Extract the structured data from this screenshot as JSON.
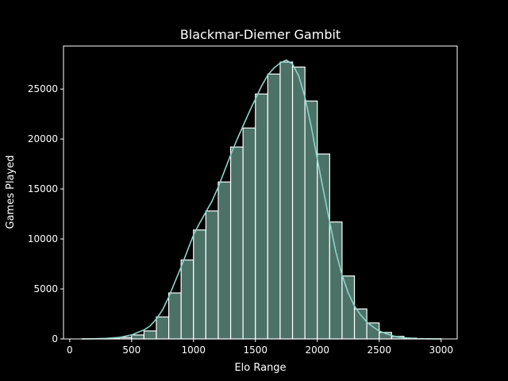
{
  "chart_data": {
    "type": "bar",
    "title": "Blackmar-Diemer Gambit",
    "xlabel": "Elo Range",
    "ylabel": "Games Played",
    "xlim": [
      -50,
      3130
    ],
    "ylim": [
      0,
      29300
    ],
    "grid": false,
    "legend": "none",
    "bin_width": 100,
    "bin_starts": [
      0,
      100,
      200,
      300,
      400,
      500,
      600,
      700,
      800,
      900,
      1000,
      1100,
      1200,
      1300,
      1400,
      1500,
      1600,
      1700,
      1800,
      1900,
      2000,
      2100,
      2200,
      2300,
      2400,
      2500,
      2600,
      2700,
      2800,
      2900,
      3000
    ],
    "values": [
      0,
      10,
      30,
      60,
      150,
      400,
      800,
      2200,
      4600,
      7900,
      10900,
      12800,
      15700,
      19200,
      21100,
      24500,
      26500,
      27700,
      27200,
      23800,
      18500,
      11700,
      6300,
      3000,
      1600,
      650,
      250,
      80,
      30,
      10,
      0
    ],
    "kde": {
      "x": [
        100,
        200,
        300,
        400,
        500,
        600,
        650,
        700,
        750,
        800,
        850,
        900,
        950,
        1000,
        1050,
        1100,
        1150,
        1200,
        1250,
        1300,
        1350,
        1400,
        1450,
        1500,
        1550,
        1600,
        1650,
        1700,
        1750,
        1800,
        1850,
        1900,
        1950,
        2000,
        2050,
        2100,
        2150,
        2200,
        2250,
        2300,
        2350,
        2400,
        2450,
        2500,
        2550,
        2600,
        2650,
        2700,
        2800,
        2900,
        3000
      ],
      "y": [
        0,
        20,
        60,
        150,
        400,
        900,
        1300,
        2000,
        2900,
        4200,
        5700,
        7200,
        8800,
        10400,
        11600,
        12700,
        13800,
        15200,
        16800,
        18400,
        19900,
        21300,
        22700,
        24000,
        25300,
        26400,
        27100,
        27600,
        27900,
        27500,
        26300,
        24200,
        21300,
        18000,
        14800,
        11700,
        8700,
        6400,
        4600,
        3300,
        2400,
        1700,
        1200,
        800,
        550,
        350,
        200,
        120,
        40,
        10,
        0
      ]
    },
    "x_ticks": [
      0,
      500,
      1000,
      1500,
      2000,
      2500,
      3000
    ],
    "y_ticks": [
      0,
      5000,
      10000,
      15000,
      20000,
      25000
    ],
    "bar_color": "#4c7268",
    "bar_edge": "#ffffff",
    "line_color": "#8dd3c7",
    "axes_color": "#ffffff",
    "background": "#000000"
  }
}
